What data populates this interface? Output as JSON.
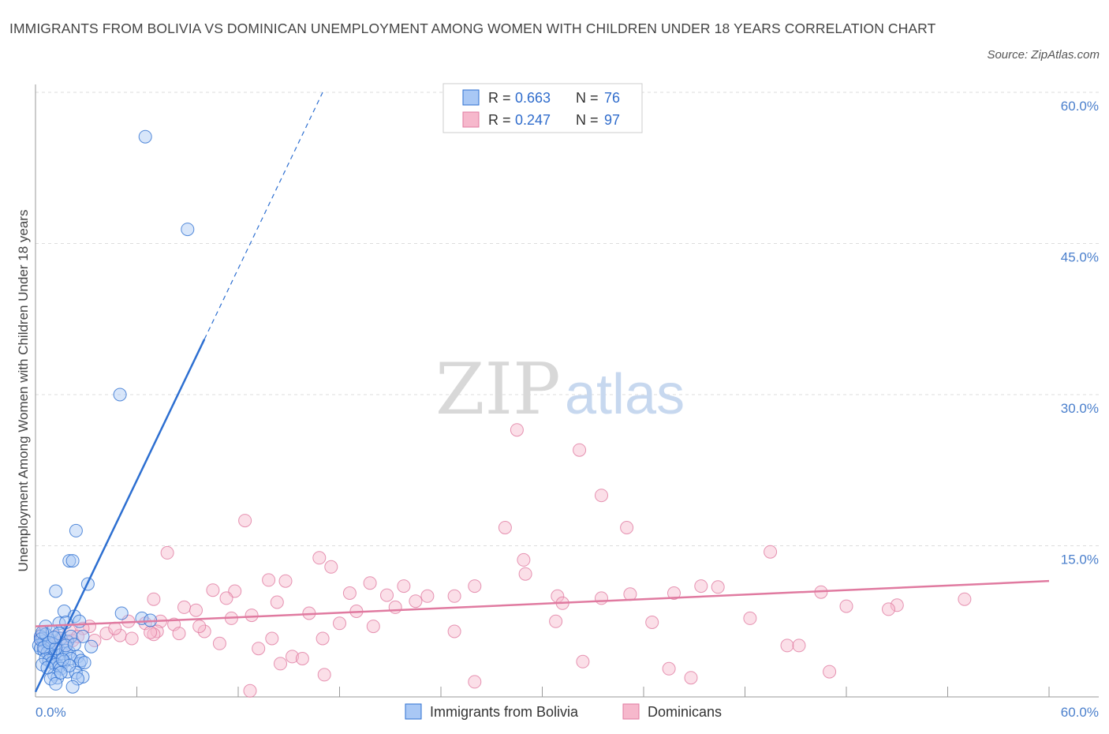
{
  "title": "IMMIGRANTS FROM BOLIVIA VS DOMINICAN UNEMPLOYMENT AMONG WOMEN WITH CHILDREN UNDER 18 YEARS CORRELATION CHART",
  "source": "Source: ZipAtlas.com",
  "watermark": {
    "zip": "ZIP",
    "atlas": "atlas"
  },
  "colors": {
    "bolivia": "#2d6fd1",
    "bolivia_fill": "#a9c8f5",
    "dominican": "#e07aa0",
    "dominican_fill": "#f6b8cc",
    "tick": "#4a7fcc",
    "grid": "#dddddd"
  },
  "legend": {
    "rows": [
      {
        "r_label": "R = ",
        "r_value": "0.663",
        "n_label": "N = ",
        "n_value": "76"
      },
      {
        "r_label": "R = ",
        "r_value": "0.247",
        "n_label": "N = ",
        "n_value": "97"
      }
    ]
  },
  "chart_data": {
    "type": "scatter",
    "title": "IMMIGRANTS FROM BOLIVIA VS DOMINICAN UNEMPLOYMENT AMONG WOMEN WITH CHILDREN UNDER 18 YEARS CORRELATION CHART",
    "xlabel": "",
    "ylabel": "Unemployment Among Women with Children Under 18 years",
    "xlim": [
      0,
      60
    ],
    "ylim": [
      0,
      60
    ],
    "x_tick_labels": [
      "0.0%",
      "60.0%"
    ],
    "y_ticks": [
      15,
      30,
      45,
      60
    ],
    "y_tick_labels": [
      "15.0%",
      "30.0%",
      "45.0%",
      "60.0%"
    ],
    "grid": true,
    "series": [
      {
        "name": "Immigrants from Bolivia",
        "R": 0.663,
        "N": 76,
        "trend": {
          "x0": 0,
          "y0": 0.5,
          "x1_solid": 10,
          "x1_dashed": 17,
          "slope": 3.5
        },
        "points": [
          [
            6.5,
            55.6
          ],
          [
            9.0,
            46.4
          ],
          [
            5.0,
            30.0
          ],
          [
            2.4,
            16.5
          ],
          [
            2.0,
            13.5
          ],
          [
            2.2,
            13.5
          ],
          [
            3.1,
            11.2
          ],
          [
            1.2,
            10.5
          ],
          [
            5.1,
            8.3
          ],
          [
            1.7,
            8.5
          ],
          [
            2.3,
            8.0
          ],
          [
            6.3,
            7.8
          ],
          [
            6.8,
            7.6
          ],
          [
            2.6,
            7.5
          ],
          [
            1.4,
            7.3
          ],
          [
            1.8,
            7.4
          ],
          [
            0.6,
            7.0
          ],
          [
            0.3,
            6.0
          ],
          [
            0.4,
            5.8
          ],
          [
            0.5,
            5.5
          ],
          [
            0.7,
            5.2
          ],
          [
            0.8,
            5.0
          ],
          [
            0.2,
            5.1
          ],
          [
            0.9,
            5.6
          ],
          [
            1.0,
            5.3
          ],
          [
            1.5,
            5.8
          ],
          [
            1.9,
            5.5
          ],
          [
            2.1,
            6.0
          ],
          [
            2.8,
            6.0
          ],
          [
            0.3,
            4.8
          ],
          [
            0.5,
            4.6
          ],
          [
            0.7,
            4.4
          ],
          [
            0.9,
            4.2
          ],
          [
            1.1,
            4.0
          ],
          [
            1.3,
            4.1
          ],
          [
            1.6,
            4.3
          ],
          [
            1.8,
            4.6
          ],
          [
            2.0,
            4.4
          ],
          [
            2.5,
            4.0
          ],
          [
            0.6,
            3.8
          ],
          [
            0.8,
            3.6
          ],
          [
            1.0,
            3.4
          ],
          [
            1.2,
            3.2
          ],
          [
            1.4,
            3.0
          ],
          [
            1.7,
            3.5
          ],
          [
            2.1,
            3.8
          ],
          [
            2.6,
            3.3
          ],
          [
            2.7,
            3.6
          ],
          [
            0.4,
            3.2
          ],
          [
            1.5,
            2.8
          ],
          [
            1.9,
            2.5
          ],
          [
            2.4,
            2.4
          ],
          [
            2.8,
            2.0
          ],
          [
            1.1,
            2.2
          ],
          [
            1.3,
            1.9
          ],
          [
            0.9,
            1.8
          ],
          [
            2.5,
            1.8
          ],
          [
            1.2,
            1.3
          ],
          [
            2.2,
            1.0
          ],
          [
            0.3,
            5.7
          ],
          [
            0.6,
            6.2
          ],
          [
            1.0,
            6.5
          ],
          [
            1.4,
            6.3
          ],
          [
            1.8,
            5.1
          ],
          [
            2.3,
            5.2
          ],
          [
            3.3,
            5.0
          ],
          [
            0.5,
            4.9
          ],
          [
            0.8,
            5.4
          ],
          [
            1.6,
            3.7
          ],
          [
            0.7,
            2.9
          ],
          [
            1.2,
            4.8
          ],
          [
            2.0,
            3.1
          ],
          [
            0.4,
            6.4
          ],
          [
            1.1,
            5.9
          ],
          [
            1.5,
            2.4
          ],
          [
            2.9,
            3.4
          ]
        ]
      },
      {
        "name": "Dominicans",
        "R": 0.247,
        "N": 97,
        "trend": {
          "x0": 0,
          "y0": 7.0,
          "x1": 60,
          "y1": 11.5
        },
        "points": [
          [
            28.5,
            26.5
          ],
          [
            32.2,
            24.5
          ],
          [
            33.5,
            20.0
          ],
          [
            12.4,
            17.5
          ],
          [
            27.8,
            16.8
          ],
          [
            35.0,
            16.8
          ],
          [
            7.8,
            14.3
          ],
          [
            16.8,
            13.8
          ],
          [
            28.9,
            13.6
          ],
          [
            43.5,
            14.4
          ],
          [
            17.5,
            12.9
          ],
          [
            29.0,
            12.2
          ],
          [
            13.8,
            11.6
          ],
          [
            14.8,
            11.5
          ],
          [
            19.8,
            11.3
          ],
          [
            21.8,
            11.0
          ],
          [
            26.0,
            11.0
          ],
          [
            39.4,
            11.0
          ],
          [
            40.4,
            10.9
          ],
          [
            10.5,
            10.6
          ],
          [
            11.8,
            10.5
          ],
          [
            18.6,
            10.3
          ],
          [
            20.8,
            10.1
          ],
          [
            23.2,
            10.0
          ],
          [
            24.8,
            10.0
          ],
          [
            30.9,
            10.0
          ],
          [
            33.5,
            9.8
          ],
          [
            35.2,
            10.2
          ],
          [
            37.8,
            10.3
          ],
          [
            46.5,
            10.4
          ],
          [
            11.3,
            9.8
          ],
          [
            7.0,
            9.7
          ],
          [
            31.2,
            9.3
          ],
          [
            22.5,
            9.5
          ],
          [
            14.3,
            9.4
          ],
          [
            21.3,
            8.9
          ],
          [
            8.8,
            8.9
          ],
          [
            9.5,
            8.6
          ],
          [
            16.2,
            8.3
          ],
          [
            19.0,
            8.5
          ],
          [
            12.8,
            8.1
          ],
          [
            11.6,
            7.8
          ],
          [
            7.4,
            7.5
          ],
          [
            8.2,
            7.2
          ],
          [
            5.5,
            7.5
          ],
          [
            6.5,
            7.3
          ],
          [
            3.2,
            7.0
          ],
          [
            2.8,
            6.8
          ],
          [
            2.0,
            6.6
          ],
          [
            4.2,
            6.3
          ],
          [
            5.0,
            6.1
          ],
          [
            7.2,
            6.5
          ],
          [
            7.0,
            6.2
          ],
          [
            10.0,
            6.5
          ],
          [
            8.5,
            6.3
          ],
          [
            1.2,
            6.0
          ],
          [
            1.5,
            5.8
          ],
          [
            2.2,
            5.6
          ],
          [
            3.5,
            5.6
          ],
          [
            1.0,
            5.3
          ],
          [
            1.8,
            5.2
          ],
          [
            0.7,
            5.5
          ],
          [
            0.5,
            5.0
          ],
          [
            0.3,
            5.8
          ],
          [
            0.4,
            6.2
          ],
          [
            0.9,
            4.8
          ],
          [
            2.5,
            6.0
          ],
          [
            14.0,
            5.8
          ],
          [
            10.9,
            5.3
          ],
          [
            13.2,
            4.8
          ],
          [
            15.2,
            4.0
          ],
          [
            14.5,
            3.3
          ],
          [
            24.8,
            6.5
          ],
          [
            17.0,
            5.8
          ],
          [
            18.0,
            7.3
          ],
          [
            20.0,
            7.0
          ],
          [
            36.5,
            7.4
          ],
          [
            42.3,
            7.8
          ],
          [
            44.5,
            5.1
          ],
          [
            45.2,
            5.1
          ],
          [
            48.0,
            9.0
          ],
          [
            51.0,
            9.1
          ],
          [
            50.5,
            8.7
          ],
          [
            55.0,
            9.7
          ],
          [
            32.4,
            3.5
          ],
          [
            37.5,
            2.8
          ],
          [
            38.8,
            1.9
          ],
          [
            47.0,
            2.5
          ],
          [
            26.0,
            1.5
          ],
          [
            17.1,
            2.2
          ],
          [
            15.8,
            3.8
          ],
          [
            12.7,
            0.6
          ],
          [
            30.8,
            7.5
          ],
          [
            6.8,
            6.4
          ],
          [
            9.7,
            7.0
          ],
          [
            4.7,
            6.8
          ],
          [
            5.7,
            5.8
          ]
        ]
      }
    ]
  },
  "bottom_legend": [
    {
      "label": "Immigrants from Bolivia"
    },
    {
      "label": "Dominicans"
    }
  ]
}
